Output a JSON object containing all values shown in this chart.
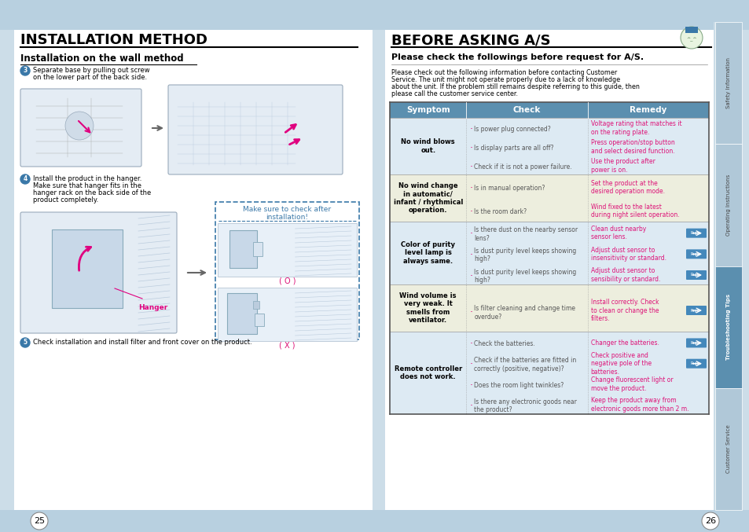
{
  "page_bg": "#ccdde8",
  "content_bg": "#ffffff",
  "left_title": "INSTALLATION METHOD",
  "left_subtitle": "Installation on the wall method",
  "right_title": "BEFORE ASKING A/S",
  "right_subtitle": "Please check the followings before request for A/S.",
  "right_intro_lines": [
    "Please check out the following information before contacting Customer",
    "Service. The unit might not operate properly due to a lack of knowledge",
    "about the unit. If the problem still remains despite referring to this guide, then",
    "please call the customer service center."
  ],
  "left_step3_line1": "Separate base by pulling out screw",
  "left_step3_line2": "on the lower part of the back side.",
  "left_step4_line1": "Install the product in the hanger.",
  "left_step4_line2": "Make sure that hanger fits in the",
  "left_step4_line3": "hanger rack on the back side of the",
  "left_step4_line4": "product completely.",
  "left_step5_text": "Check installation and install filter and front cover on the product.",
  "make_sure_text": "Make sure to check after\ninstallation!",
  "hanger_label": "Hanger",
  "ok_label": "( O )",
  "x_label": "( X )",
  "table_header_bg": "#5b8faf",
  "table_header_text": "#ffffff",
  "table_row_bgs": [
    "#ddeaf3",
    "#edeede",
    "#ddeaf3",
    "#edeede",
    "#ddeaf3"
  ],
  "remedy_color": "#dd1177",
  "symptom_color": "#000000",
  "check_color": "#555555",
  "bullet_color": "#dd1177",
  "side_tab_colors": [
    "#b0c8d8",
    "#b0c8d8",
    "#5b8faf",
    "#b0c8d8"
  ],
  "side_tab_text_colors": [
    "#444444",
    "#444444",
    "#ffffff",
    "#444444"
  ],
  "page_num_left": "25",
  "page_num_right": "26",
  "table_headers": [
    "Symptom",
    "Check",
    "Remedy"
  ],
  "table_data": [
    {
      "symptom": "No wind blows\nout.",
      "checks": [
        "Is power plug connected?",
        "Is display parts are all off?",
        "Check if it is not a power failure."
      ],
      "remedies": [
        "Voltage rating that matches it\non the rating plate.",
        "Press operation/stop button\nand select desired function.",
        "Use the product after\npower is on."
      ],
      "has_arrows": [
        false,
        false,
        false
      ]
    },
    {
      "symptom": "No wind change\nin automatic/\ninfant / rhythmical\noperation.",
      "checks": [
        "Is in manual operation?",
        "Is the room dark?"
      ],
      "remedies": [
        "Set the product at the\ndesired operation mode.",
        "Wind fixed to the latest\nduring night silent operation."
      ],
      "has_arrows": [
        false,
        false
      ]
    },
    {
      "symptom": "Color of purity\nlevel lamp is\nalways same.",
      "checks": [
        "Is there dust on the nearby sensor\nlens?",
        "Is dust purity level keeps showing\nhigh?",
        "Is dust purity level keeps showing\nhigh?"
      ],
      "remedies": [
        "Clean dust nearby\nsensor lens.",
        "Adjust dust sensor to\ninsensitivity or standard.",
        "Adjust dust sensor to\nsensibility or standard."
      ],
      "has_arrows": [
        true,
        true,
        true
      ]
    },
    {
      "symptom": "Wind volume is\nvery weak. It\nsmells from\nventilator.",
      "checks": [
        "Is filter cleaning and change time\noverdue?"
      ],
      "remedies": [
        "Install correctly. Check\nto clean or change the\nfilters."
      ],
      "has_arrows": [
        true
      ]
    },
    {
      "symptom": "Remote controller\ndoes not work.",
      "checks": [
        "Check the batteries.",
        "Check if the batteries are fitted in\ncorrectly (positive, negative)?",
        "Does the room light twinkles?",
        "Is there any electronic goods near\nthe product?"
      ],
      "remedies": [
        "Changer the batteries.",
        "Check positive and\nnegative pole of the\nbatteries.",
        "Change fluorescent light or\nmove the product.",
        "Keep the product away from\nelectronic goods more than 2 m."
      ],
      "has_arrows": [
        true,
        true,
        false,
        false
      ]
    }
  ],
  "side_tabs": [
    "Safety Information",
    "Operating Instructions",
    "Troubleshooting Tips",
    "Customer Service"
  ]
}
